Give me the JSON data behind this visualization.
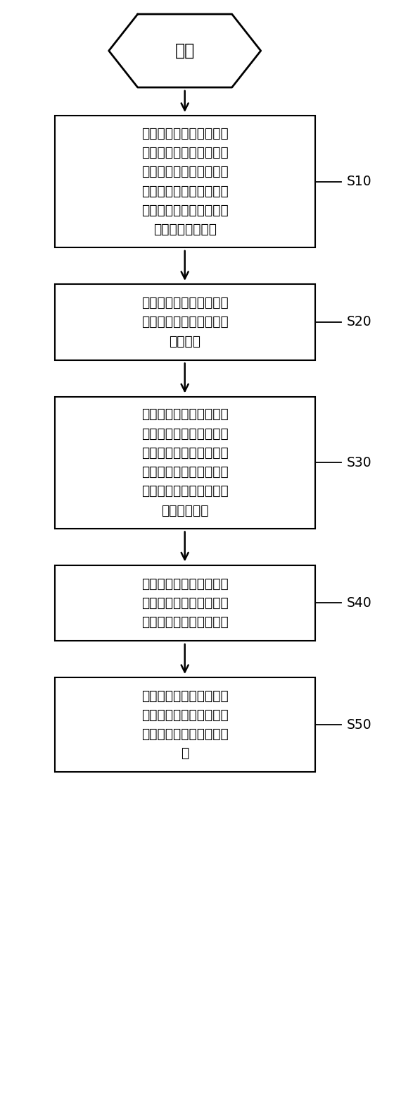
{
  "background_color": "#ffffff",
  "start_label": "开始",
  "steps": [
    {
      "label": "接收测距装置发送的所述\n测距传感器与测距挡板的\n真实距离，以及，获取通\n过所述测距传感器测量得\n到的测距传感器与所述测\n距挡板的测量距离",
      "tag": "S10",
      "n_lines": 6
    },
    {
      "label": "根据所述真实距离和测量\n距离，标定所述测距传感\n器的参数",
      "tag": "S20",
      "n_lines": 3
    },
    {
      "label": "多次调整所述测距装置的\n测距挡板与所述传感器的\n相对位置，并分别获取每\n一次调整后的所述测距挡\n板与所述传感器的真实距\n离和测量距离",
      "tag": "S30",
      "n_lines": 6
    },
    {
      "label": "根据每一次调整所获取的\n真实距离和测量距离，获\n取多个测距传感器的参数",
      "tag": "S40",
      "n_lines": 3
    },
    {
      "label": "将所述多个测距传感器的\n参数进行平均计算，得到\n所述测距传感器的最终参\n数",
      "tag": "S50",
      "n_lines": 4
    }
  ],
  "fig_width": 5.97,
  "fig_height": 15.69,
  "dpi": 100
}
